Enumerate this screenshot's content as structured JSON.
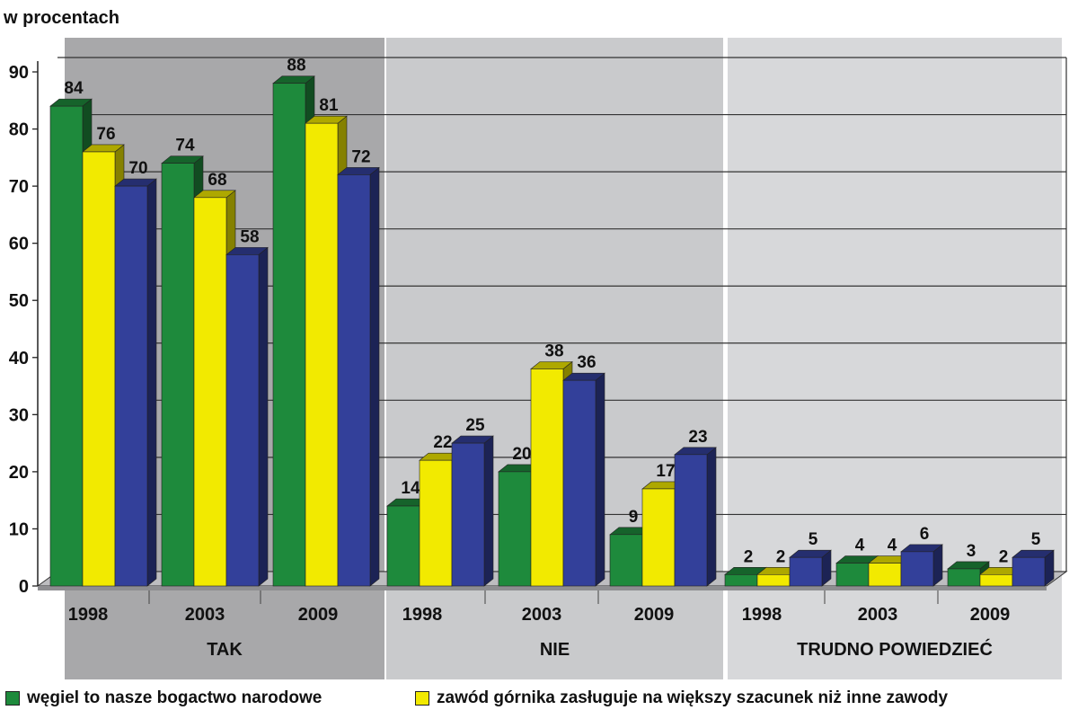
{
  "chart_data": {
    "type": "bar",
    "ylabel": "w procentach",
    "ylim": [
      0,
      90
    ],
    "yticks": [
      0,
      10,
      20,
      30,
      40,
      50,
      60,
      70,
      80,
      90
    ],
    "grid": true,
    "groups": [
      {
        "label": "TAK",
        "years": [
          "1998",
          "2003",
          "2009"
        ],
        "series_values": [
          [
            84,
            74,
            88
          ],
          [
            76,
            68,
            81
          ],
          [
            70,
            58,
            72
          ]
        ],
        "bg": "#a8a8aa"
      },
      {
        "label": "NIE",
        "years": [
          "1998",
          "2003",
          "2009"
        ],
        "series_values": [
          [
            14,
            20,
            9
          ],
          [
            22,
            38,
            17
          ],
          [
            25,
            36,
            23
          ]
        ],
        "bg": "#c9cacc"
      },
      {
        "label": "TRUDNO POWIEDZIEĆ",
        "years": [
          "1998",
          "2003",
          "2009"
        ],
        "series_values": [
          [
            2,
            4,
            3
          ],
          [
            2,
            4,
            2
          ],
          [
            5,
            6,
            5
          ]
        ],
        "bg": "#d7d8da"
      }
    ],
    "series": [
      {
        "name": "węgiel to nasze bogactwo narodowe",
        "color": "#1e8a3c"
      },
      {
        "name": "zawód górnika zasługuje na większy szacunek niż inne zawody",
        "color": "#f2ea00"
      },
      {
        "name": "",
        "color": "#33409a"
      }
    ],
    "legend_position": "bottom"
  }
}
